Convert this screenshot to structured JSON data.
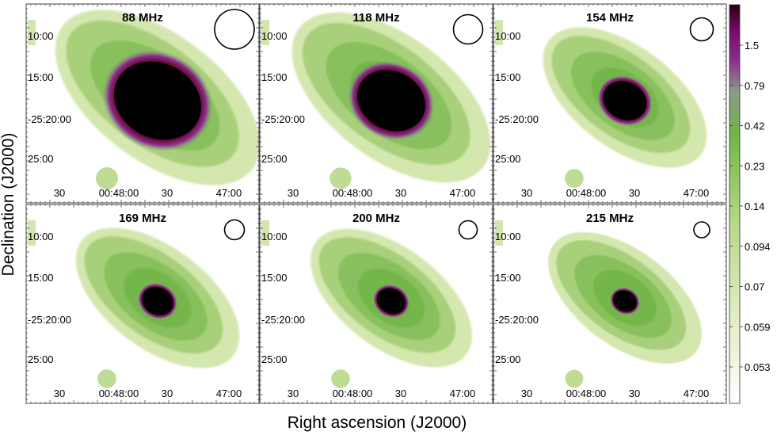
{
  "chart_data": {
    "type": "heatmap",
    "xlabel": "Right ascension (J2000)",
    "ylabel": "Declination (J2000)",
    "x_tick_labels": [
      "30",
      "00:48:00",
      "30",
      "47:00"
    ],
    "y_tick_labels": [
      "10:00",
      "15:00",
      "-25:20:00",
      "25:00"
    ],
    "panels": [
      {
        "title": "88 MHz",
        "beam_size": 1.0,
        "core_size": 1.0,
        "halo_size": 1.0
      },
      {
        "title": "118 MHz",
        "beam_size": 0.74,
        "core_size": 0.78,
        "halo_size": 0.97
      },
      {
        "title": "154 MHz",
        "beam_size": 0.58,
        "core_size": 0.5,
        "halo_size": 0.8
      },
      {
        "title": "169 MHz",
        "beam_size": 0.5,
        "core_size": 0.36,
        "halo_size": 0.8
      },
      {
        "title": "200 MHz",
        "beam_size": 0.46,
        "core_size": 0.33,
        "halo_size": 0.79
      },
      {
        "title": "215 MHz",
        "beam_size": 0.4,
        "core_size": 0.27,
        "halo_size": 0.75
      }
    ],
    "colorbar": {
      "ticks": [
        "1.5",
        "0.79",
        "0.42",
        "0.23",
        "0.14",
        "0.094",
        "0.07",
        "0.059",
        "0.053"
      ],
      "colors": [
        "#ffffff",
        "#eef4dc",
        "#d7e8b4",
        "#b8d889",
        "#8ec660",
        "#6fb447",
        "#8e9a8a",
        "#8a2f8e",
        "#7d0a6e",
        "#2b0010"
      ]
    }
  }
}
